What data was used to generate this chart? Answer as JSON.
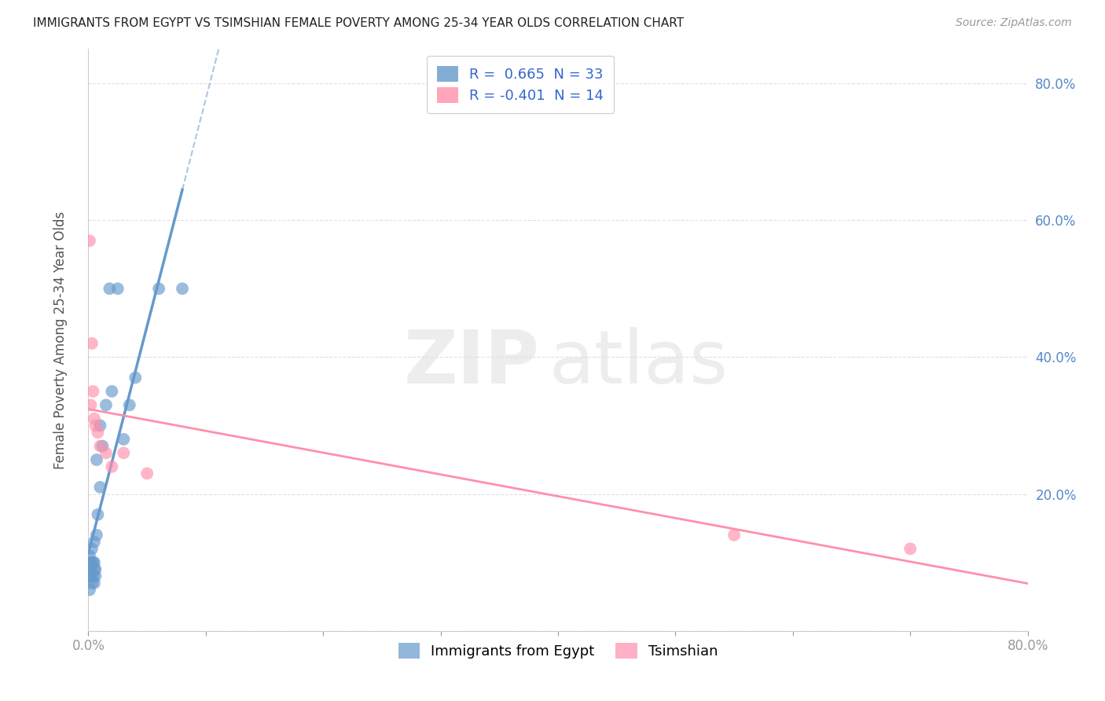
{
  "title": "IMMIGRANTS FROM EGYPT VS TSIMSHIAN FEMALE POVERTY AMONG 25-34 YEAR OLDS CORRELATION CHART",
  "source": "Source: ZipAtlas.com",
  "ylabel": "Female Poverty Among 25-34 Year Olds",
  "xlim": [
    0.0,
    0.8
  ],
  "ylim": [
    0.0,
    0.85
  ],
  "xticks": [
    0.0,
    0.1,
    0.2,
    0.3,
    0.4,
    0.5,
    0.6,
    0.7,
    0.8
  ],
  "xticklabels": [
    "0.0%",
    "",
    "",
    "",
    "",
    "",
    "",
    "",
    "80.0%"
  ],
  "yticks": [
    0.0,
    0.2,
    0.4,
    0.6,
    0.8
  ],
  "yticklabels_right": [
    "",
    "20.0%",
    "40.0%",
    "60.0%",
    "80.0%"
  ],
  "egypt_color": "#6699CC",
  "tsimshian_color": "#FF8FAB",
  "egypt_R": 0.665,
  "egypt_N": 33,
  "tsimshian_R": -0.401,
  "tsimshian_N": 14,
  "legend_label_egypt": "Immigrants from Egypt",
  "legend_label_tsimshian": "Tsimshian",
  "watermark_zip": "ZIP",
  "watermark_atlas": "atlas",
  "egypt_x": [
    0.001,
    0.001,
    0.001,
    0.001,
    0.001,
    0.002,
    0.002,
    0.003,
    0.003,
    0.003,
    0.004,
    0.004,
    0.005,
    0.005,
    0.005,
    0.005,
    0.006,
    0.006,
    0.007,
    0.007,
    0.008,
    0.01,
    0.01,
    0.012,
    0.015,
    0.018,
    0.02,
    0.025,
    0.03,
    0.035,
    0.04,
    0.06,
    0.08
  ],
  "egypt_y": [
    0.08,
    0.09,
    0.1,
    0.11,
    0.06,
    0.08,
    0.09,
    0.07,
    0.1,
    0.12,
    0.08,
    0.1,
    0.07,
    0.09,
    0.1,
    0.13,
    0.08,
    0.09,
    0.14,
    0.25,
    0.17,
    0.21,
    0.3,
    0.27,
    0.33,
    0.5,
    0.35,
    0.5,
    0.28,
    0.33,
    0.37,
    0.5,
    0.5
  ],
  "tsimshian_x": [
    0.001,
    0.002,
    0.003,
    0.004,
    0.005,
    0.006,
    0.008,
    0.01,
    0.015,
    0.02,
    0.03,
    0.05,
    0.55,
    0.7
  ],
  "tsimshian_y": [
    0.57,
    0.33,
    0.42,
    0.35,
    0.31,
    0.3,
    0.29,
    0.27,
    0.26,
    0.24,
    0.26,
    0.23,
    0.14,
    0.12
  ],
  "background_color": "#FFFFFF",
  "grid_color": "#E0E0E0"
}
